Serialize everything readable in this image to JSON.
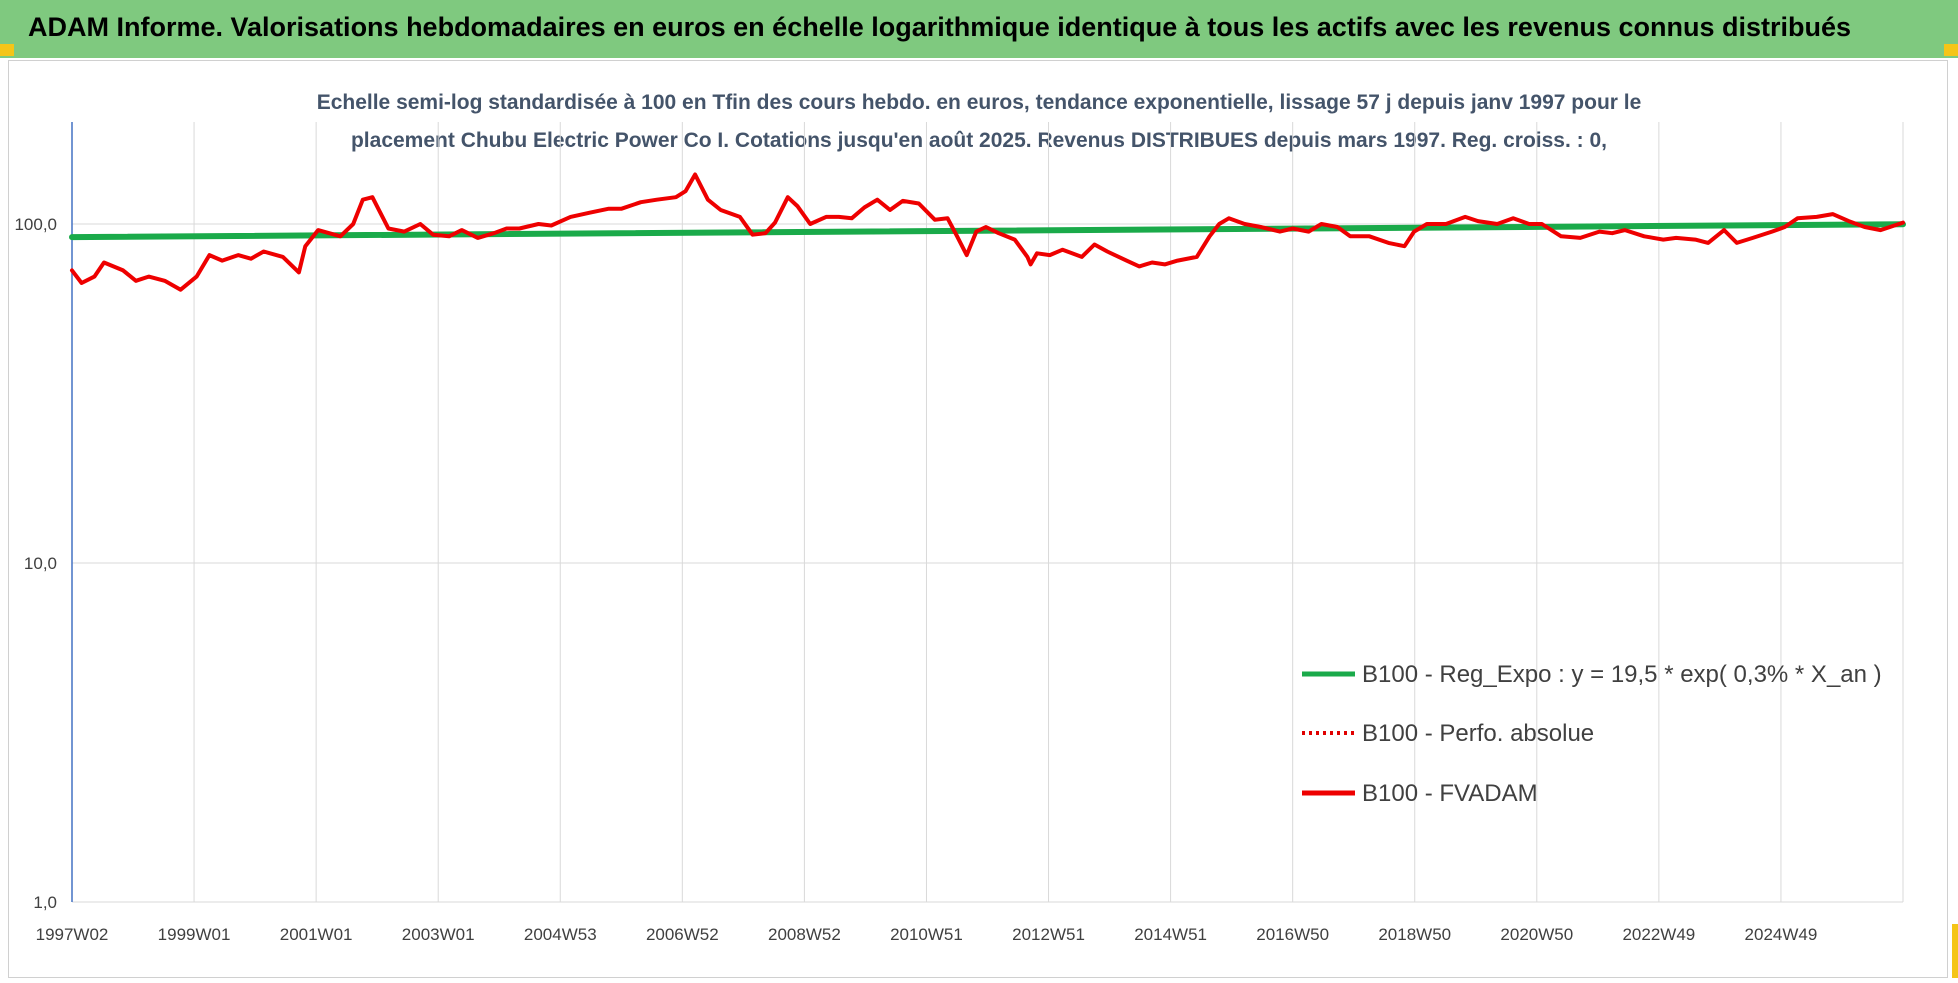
{
  "header": {
    "title": "ADAM Informe. Valorisations hebdomadaires en euros en échelle logarithmique identique à tous les actifs avec les revenus connus distribués"
  },
  "colors": {
    "banner": "#7fc97f",
    "accent_corner": "#f5c518",
    "reg_expo": "#1aaa4a",
    "perfo": "#e00000",
    "fvadam": "#ee0000",
    "gridline": "#d9d9d9",
    "axis": "#4472c4"
  },
  "chart_data": {
    "type": "line",
    "title_lines": [
      "Echelle semi-log standardisée à 100 en Tfin des cours hebdo. en euros, tendance exponentielle, lissage 57 j depuis janv 1997 pour le",
      "placement Chubu Electric Power Co I. Cotations jusqu'en août 2025. Revenus DISTRIBUES depuis mars 1997. Reg. croiss. : 0,"
    ],
    "y_scale": "log",
    "ylim": [
      1,
      200
    ],
    "y_ticks": [
      {
        "value": 1,
        "label": "1,0"
      },
      {
        "value": 10,
        "label": "10,0"
      },
      {
        "value": 100,
        "label": "100,0"
      }
    ],
    "xlim": [
      1997.0,
      2025.65
    ],
    "x_tick_labels": [
      "1997W02",
      "1999W01",
      "2001W01",
      "2003W01",
      "2004W53",
      "2006W52",
      "2008W52",
      "2010W51",
      "2012W51",
      "2014W51",
      "2016W50",
      "2018W50",
      "2020W50",
      "2022W49",
      "2024W49"
    ],
    "grid": true,
    "legend_position": "bottom-right",
    "series": [
      {
        "name": "B100 - Reg_Expo : y = 19,5 * exp( 0,3% *  X_an )",
        "style": "solid",
        "color": "#1aaa4a",
        "x": [
          1997.0,
          2025.65
        ],
        "y": [
          91.5,
          99.8
        ]
      },
      {
        "name": "B100 - Perfo. absolue",
        "style": "dotted",
        "color": "#e00000",
        "x": [],
        "y": []
      },
      {
        "name": "B100 - FVADAM",
        "style": "solid",
        "color": "#ee0000",
        "x": [
          1997.0,
          1997.15,
          1997.35,
          1997.5,
          1997.8,
          1998.0,
          1998.2,
          1998.45,
          1998.7,
          1998.95,
          1999.15,
          1999.35,
          1999.6,
          1999.8,
          2000.0,
          2000.3,
          2000.55,
          2000.65,
          2000.85,
          2001.2,
          2001.4,
          2001.55,
          2001.7,
          2001.95,
          2002.2,
          2002.45,
          2002.65,
          2002.9,
          2003.1,
          2003.35,
          2003.6,
          2003.8,
          2004.0,
          2004.3,
          2004.5,
          2004.8,
          2005.1,
          2005.4,
          2005.6,
          2005.9,
          2006.15,
          2006.45,
          2006.6,
          2006.75,
          2006.95,
          2007.15,
          2007.45,
          2007.65,
          2007.85,
          2008.0,
          2008.2,
          2008.35,
          2008.55,
          2008.8,
          2009.0,
          2009.2,
          2009.4,
          2009.6,
          2009.8,
          2010.0,
          2010.25,
          2010.5,
          2010.7,
          2010.85,
          2011.0,
          2011.15,
          2011.3,
          2011.5,
          2011.75,
          2011.95,
          2012.0,
          2012.1,
          2012.3,
          2012.5,
          2012.8,
          2013.0,
          2013.2,
          2013.5,
          2013.7,
          2013.9,
          2014.1,
          2014.3,
          2014.6,
          2014.8,
          2014.95,
          2015.1,
          2015.35,
          2015.6,
          2015.9,
          2016.1,
          2016.35,
          2016.55,
          2016.8,
          2017.0,
          2017.3,
          2017.6,
          2017.85,
          2018.0,
          2018.2,
          2018.5,
          2018.8,
          2019.0,
          2019.3,
          2019.55,
          2019.8,
          2020.0,
          2020.3,
          2020.6,
          2020.9,
          2021.1,
          2021.3,
          2021.6,
          2021.9,
          2022.1,
          2022.4,
          2022.6,
          2022.85,
          2023.05,
          2023.3,
          2023.6,
          2023.8,
          2024.0,
          2024.3,
          2024.55,
          2024.8,
          2025.05,
          2025.3,
          2025.65
        ],
        "y": [
          73,
          67,
          70,
          77,
          73,
          68,
          70,
          68,
          64,
          70,
          81,
          78,
          81,
          79,
          83,
          80,
          72,
          86,
          96,
          92,
          100,
          118,
          120,
          97,
          95,
          100,
          93,
          92,
          96,
          91,
          94,
          97,
          97,
          100,
          99,
          105,
          108,
          111,
          111,
          116,
          118,
          120,
          125,
          140,
          118,
          110,
          105,
          93,
          94,
          101,
          120,
          113,
          100,
          105,
          105,
          104,
          112,
          118,
          110,
          117,
          115,
          103,
          104,
          92,
          81,
          95,
          98,
          94,
          90,
          80,
          76,
          82,
          81,
          84,
          80,
          87,
          83,
          78,
          75,
          77,
          76,
          78,
          80,
          92,
          100,
          104,
          100,
          98,
          95,
          97,
          95,
          100,
          98,
          92,
          92,
          88,
          86,
          95,
          100,
          100,
          105,
          102,
          100,
          104,
          100,
          100,
          92,
          91,
          95,
          94,
          96,
          92,
          90,
          91,
          90,
          88,
          96,
          88,
          91,
          95,
          98,
          104,
          105,
          107,
          102,
          98,
          96,
          101
        ]
      }
    ]
  }
}
